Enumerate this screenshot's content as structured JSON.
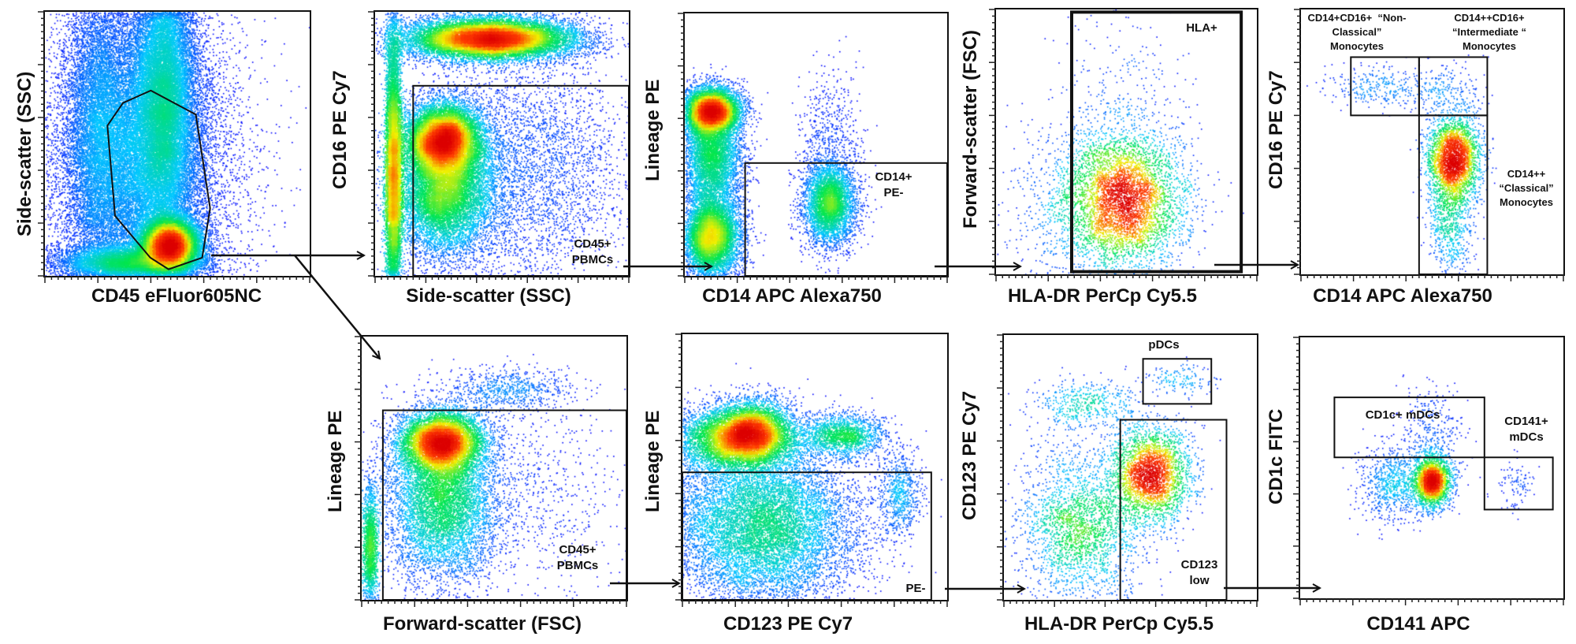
{
  "figure": {
    "panels": [
      {
        "id": "p1",
        "x_label": "CD45 eFluor605NC",
        "y_label": "Side-scatter (SSC)",
        "gates": []
      },
      {
        "id": "p2",
        "x_label": "Side-scatter (SSC)",
        "y_label": "CD16 PE Cy7",
        "gates": [
          {
            "label": "CD45+\nPBMCs"
          }
        ]
      },
      {
        "id": "p3",
        "x_label": "CD14 APC Alexa750",
        "y_label": "Lineage PE",
        "gates": [
          {
            "label": "CD14+\nPE-"
          }
        ]
      },
      {
        "id": "p4",
        "x_label": "HLA-DR PerCp Cy5.5",
        "y_label": "Forward-scatter (FSC)",
        "gates": [
          {
            "label": "HLA+"
          }
        ]
      },
      {
        "id": "p5",
        "x_label": "CD14 APC Alexa750",
        "y_label": "CD16 PE Cy7",
        "gates": [
          {
            "label": "CD14+CD16+  “Non-\nClassical”\nMonocytes"
          },
          {
            "label": "CD14++CD16+\n“Intermediate “\nMonocytes"
          },
          {
            "label": "CD14++\n“Classical”\nMonocytes"
          }
        ]
      },
      {
        "id": "p6",
        "x_label": "Forward-scatter (FSC)",
        "y_label": "Lineage PE",
        "gates": [
          {
            "label": "CD45+\nPBMCs"
          }
        ]
      },
      {
        "id": "p7",
        "x_label": "CD123 PE Cy7",
        "y_label": "Lineage PE",
        "gates": [
          {
            "label": "PE-"
          }
        ]
      },
      {
        "id": "p8",
        "x_label": "HLA-DR PerCp Cy5.5",
        "y_label": "CD123 PE Cy7",
        "gates": [
          {
            "label": "pDCs"
          },
          {
            "label": "CD123\nlow"
          }
        ]
      },
      {
        "id": "p9",
        "x_label": "CD141 APC",
        "y_label": "CD1c FITC",
        "gates": [
          {
            "label": "CD1c+ mDCs"
          },
          {
            "label": "CD141+\nmDCs"
          }
        ]
      }
    ],
    "colors": {
      "gate": "#111111",
      "low_density": "#0000ff",
      "high_density": "#ff0000"
    }
  }
}
